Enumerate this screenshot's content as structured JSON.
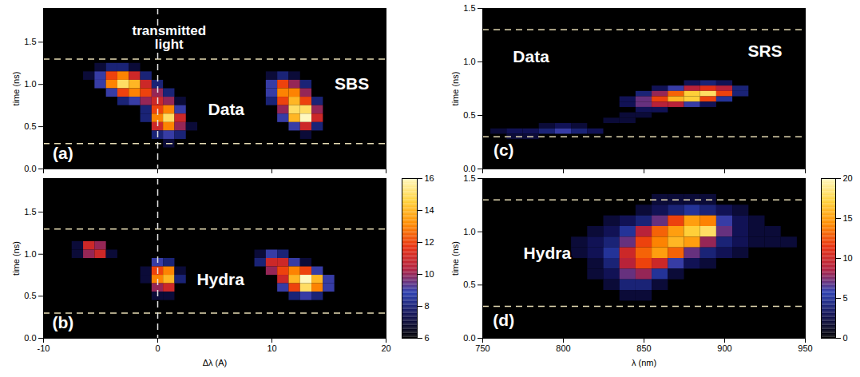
{
  "chart_data": [
    {
      "type": "heatmap",
      "y_label": "time (ns)",
      "xlim": [
        -10,
        20
      ],
      "xticks": [
        -10,
        0,
        10,
        20
      ],
      "ylim": [
        0,
        1.9
      ],
      "yticks": [
        {
          "value": 0,
          "label": "0.0"
        },
        0.5,
        {
          "value": 1,
          "label": "1.0"
        },
        1.5
      ],
      "tick_labels": "y",
      "hlines": [
        0.3,
        1.3
      ],
      "vlines": [
        0
      ],
      "color_range": [
        6,
        16
      ],
      "annotations": [
        {
          "text": "transmitted light",
          "x": 1,
          "y": 1.55
        },
        {
          "text": "Data",
          "x": 6,
          "y": 0.7
        },
        {
          "text": "SBS",
          "x": 17,
          "y": 1.0
        },
        {
          "text": "(a)",
          "x": -8.3,
          "y": 0.18
        }
      ],
      "cells": [
        [
          -5,
          1.2,
          7
        ],
        [
          -4,
          1.2,
          8
        ],
        [
          -3,
          1.2,
          8
        ],
        [
          -2,
          1.2,
          7
        ],
        [
          -6,
          1.1,
          7
        ],
        [
          -5,
          1.1,
          9
        ],
        [
          -4,
          1.1,
          12
        ],
        [
          -3,
          1.1,
          13
        ],
        [
          -2,
          1.1,
          11
        ],
        [
          -1,
          1.1,
          8
        ],
        [
          -5,
          1.0,
          9
        ],
        [
          -4,
          1.0,
          13
        ],
        [
          -3,
          1.0,
          15
        ],
        [
          -2,
          1.0,
          14
        ],
        [
          -1,
          1.0,
          11
        ],
        [
          0,
          1.0,
          8
        ],
        [
          -4,
          0.9,
          9
        ],
        [
          -3,
          0.9,
          12
        ],
        [
          -2,
          0.9,
          13
        ],
        [
          -1,
          0.9,
          12
        ],
        [
          0,
          0.9,
          10
        ],
        [
          1,
          0.9,
          8
        ],
        [
          -3,
          0.8,
          8
        ],
        [
          -2,
          0.8,
          9
        ],
        [
          -1,
          0.8,
          10
        ],
        [
          0,
          0.8,
          11
        ],
        [
          1,
          0.8,
          10
        ],
        [
          2,
          0.8,
          7
        ],
        [
          -1,
          0.7,
          8
        ],
        [
          0,
          0.7,
          12
        ],
        [
          1,
          0.7,
          13
        ],
        [
          2,
          0.7,
          9
        ],
        [
          -1,
          0.6,
          8
        ],
        [
          0,
          0.6,
          13
        ],
        [
          1,
          0.6,
          15
        ],
        [
          2,
          0.6,
          11
        ],
        [
          0,
          0.5,
          11
        ],
        [
          1,
          0.5,
          13
        ],
        [
          2,
          0.5,
          10
        ],
        [
          3,
          0.5,
          7
        ],
        [
          0,
          0.4,
          8
        ],
        [
          1,
          0.4,
          9
        ],
        [
          2,
          0.4,
          8
        ],
        [
          1,
          0.3,
          7
        ],
        [
          10,
          1.1,
          7
        ],
        [
          11,
          1.1,
          8
        ],
        [
          12,
          1.1,
          7
        ],
        [
          10,
          1.0,
          9
        ],
        [
          11,
          1.0,
          12
        ],
        [
          12,
          1.0,
          10
        ],
        [
          13,
          1.0,
          8
        ],
        [
          10,
          0.9,
          9
        ],
        [
          11,
          0.9,
          13
        ],
        [
          12,
          0.9,
          13
        ],
        [
          13,
          0.9,
          10
        ],
        [
          10,
          0.8,
          8
        ],
        [
          11,
          0.8,
          12
        ],
        [
          12,
          0.8,
          14
        ],
        [
          13,
          0.8,
          12
        ],
        [
          14,
          0.8,
          8
        ],
        [
          11,
          0.7,
          10
        ],
        [
          12,
          0.7,
          15
        ],
        [
          13,
          0.7,
          15
        ],
        [
          14,
          0.7,
          10
        ],
        [
          11,
          0.6,
          9
        ],
        [
          12,
          0.6,
          14
        ],
        [
          13,
          0.6,
          16
        ],
        [
          14,
          0.6,
          11
        ],
        [
          12,
          0.5,
          9
        ],
        [
          13,
          0.5,
          11
        ],
        [
          14,
          0.5,
          8
        ],
        [
          13,
          0.4,
          7
        ]
      ]
    },
    {
      "type": "heatmap",
      "x_label": "Δλ (A)",
      "y_label": "time (ns)",
      "xlim": [
        -10,
        20
      ],
      "xticks": [
        -10,
        0,
        10,
        20
      ],
      "ylim": [
        0,
        1.9
      ],
      "yticks": [
        {
          "value": 0,
          "label": "0.0"
        },
        0.5,
        {
          "value": 1,
          "label": "1.0"
        },
        1.5
      ],
      "hlines": [
        0.3,
        1.3
      ],
      "vlines": [
        0
      ],
      "color_range": [
        6,
        16
      ],
      "colorbar": {
        "ticks": [
          6,
          8,
          10,
          12,
          14,
          16
        ]
      },
      "annotations": [
        {
          "text": "Hydra",
          "x": 5.5,
          "y": 0.7
        },
        {
          "text": "(b)",
          "x": -8.3,
          "y": 0.18
        }
      ],
      "cells": [
        [
          -7,
          1.1,
          7
        ],
        [
          -6,
          1.1,
          11
        ],
        [
          -5,
          1.1,
          10
        ],
        [
          -7,
          1.0,
          7
        ],
        [
          -6,
          1.0,
          10
        ],
        [
          -5,
          1.0,
          11
        ],
        [
          -4,
          1.0,
          7
        ],
        [
          0,
          0.9,
          9
        ],
        [
          1,
          0.9,
          8
        ],
        [
          -1,
          0.8,
          7
        ],
        [
          0,
          0.8,
          12
        ],
        [
          1,
          0.8,
          13
        ],
        [
          2,
          0.8,
          7
        ],
        [
          -1,
          0.7,
          7
        ],
        [
          0,
          0.7,
          13
        ],
        [
          1,
          0.7,
          14
        ],
        [
          2,
          0.7,
          8
        ],
        [
          0,
          0.6,
          10
        ],
        [
          1,
          0.6,
          11
        ],
        [
          0,
          0.5,
          7
        ],
        [
          1,
          0.5,
          7
        ],
        [
          9,
          1.0,
          7
        ],
        [
          10,
          1.0,
          9
        ],
        [
          11,
          1.0,
          8
        ],
        [
          9,
          0.9,
          8
        ],
        [
          10,
          0.9,
          11
        ],
        [
          11,
          0.9,
          11
        ],
        [
          12,
          0.9,
          9
        ],
        [
          13,
          0.9,
          7
        ],
        [
          10,
          0.8,
          10
        ],
        [
          11,
          0.8,
          12
        ],
        [
          12,
          0.8,
          13
        ],
        [
          13,
          0.8,
          12
        ],
        [
          14,
          0.8,
          9
        ],
        [
          11,
          0.7,
          11
        ],
        [
          12,
          0.7,
          14
        ],
        [
          13,
          0.7,
          16
        ],
        [
          14,
          0.7,
          14
        ],
        [
          15,
          0.7,
          9
        ],
        [
          11,
          0.6,
          9
        ],
        [
          12,
          0.6,
          12
        ],
        [
          13,
          0.6,
          15
        ],
        [
          14,
          0.6,
          13
        ],
        [
          15,
          0.6,
          9
        ],
        [
          12,
          0.5,
          8
        ],
        [
          13,
          0.5,
          9
        ],
        [
          14,
          0.5,
          8
        ]
      ]
    },
    {
      "type": "heatmap",
      "y_label": "time (ns)",
      "xlim": [
        750,
        950
      ],
      "xticks": [
        750,
        800,
        850,
        900,
        950
      ],
      "ylim": [
        0,
        1.5
      ],
      "yticks": [
        {
          "value": 0,
          "label": "0.0"
        },
        0.5,
        {
          "value": 1,
          "label": "1.0"
        },
        1.5
      ],
      "tick_labels": "y",
      "hlines": [
        0.3,
        1.3
      ],
      "color_range": [
        0,
        20
      ],
      "annotations": [
        {
          "text": "Data",
          "x": 780,
          "y": 1.05
        },
        {
          "text": "SRS",
          "x": 925,
          "y": 1.1
        },
        {
          "text": "(c)",
          "x": 763,
          "y": 0.17
        }
      ],
      "cells": [
        [
          880,
          0.8,
          3
        ],
        [
          890,
          0.8,
          4
        ],
        [
          900,
          0.8,
          3
        ],
        [
          860,
          0.75,
          3
        ],
        [
          870,
          0.75,
          6
        ],
        [
          880,
          0.75,
          9
        ],
        [
          890,
          0.75,
          11
        ],
        [
          900,
          0.75,
          9
        ],
        [
          910,
          0.75,
          4
        ],
        [
          850,
          0.7,
          4
        ],
        [
          860,
          0.7,
          8
        ],
        [
          870,
          0.7,
          13
        ],
        [
          880,
          0.7,
          17
        ],
        [
          890,
          0.7,
          18
        ],
        [
          900,
          0.7,
          12
        ],
        [
          910,
          0.7,
          4
        ],
        [
          840,
          0.65,
          3
        ],
        [
          850,
          0.65,
          7
        ],
        [
          860,
          0.65,
          12
        ],
        [
          870,
          0.65,
          16
        ],
        [
          880,
          0.65,
          17
        ],
        [
          890,
          0.65,
          12
        ],
        [
          900,
          0.65,
          5
        ],
        [
          840,
          0.6,
          3
        ],
        [
          850,
          0.6,
          7
        ],
        [
          860,
          0.6,
          9
        ],
        [
          870,
          0.6,
          9
        ],
        [
          880,
          0.6,
          6
        ],
        [
          890,
          0.6,
          3
        ],
        [
          850,
          0.55,
          3
        ],
        [
          860,
          0.55,
          3
        ],
        [
          840,
          0.5,
          2
        ],
        [
          850,
          0.5,
          2
        ],
        [
          830,
          0.45,
          2
        ],
        [
          840,
          0.45,
          2
        ],
        [
          790,
          0.4,
          2
        ],
        [
          800,
          0.4,
          3
        ],
        [
          810,
          0.4,
          2
        ],
        [
          760,
          0.35,
          2
        ],
        [
          770,
          0.35,
          3
        ],
        [
          780,
          0.35,
          3
        ],
        [
          790,
          0.35,
          4
        ],
        [
          800,
          0.35,
          6
        ],
        [
          810,
          0.35,
          4
        ],
        [
          820,
          0.35,
          3
        ],
        [
          770,
          0.3,
          2
        ],
        [
          780,
          0.3,
          2
        ]
      ]
    },
    {
      "type": "heatmap",
      "x_label": "λ (nm)",
      "y_label": "time (ns)",
      "xlim": [
        750,
        950
      ],
      "xticks": [
        750,
        800,
        850,
        900,
        950
      ],
      "ylim": [
        0,
        1.5
      ],
      "yticks": [
        {
          "value": 0,
          "label": "0.0"
        },
        0.5,
        {
          "value": 1,
          "label": "1.0"
        },
        1.5
      ],
      "hlines": [
        0.3,
        1.3
      ],
      "color_range": [
        0,
        20
      ],
      "colorbar": {
        "ticks": [
          0,
          5,
          10,
          15,
          20
        ]
      },
      "annotations": [
        {
          "text": "Hydra",
          "x": 790,
          "y": 0.8
        },
        {
          "text": "(d)",
          "x": 763,
          "y": 0.17
        }
      ],
      "cells": [
        [
          860,
          1.3,
          2
        ],
        [
          870,
          1.3,
          2
        ],
        [
          880,
          1.3,
          2
        ],
        [
          890,
          1.3,
          2
        ],
        [
          850,
          1.2,
          2
        ],
        [
          860,
          1.2,
          3
        ],
        [
          870,
          1.2,
          4
        ],
        [
          880,
          1.2,
          5
        ],
        [
          890,
          1.2,
          4
        ],
        [
          900,
          1.2,
          3
        ],
        [
          910,
          1.2,
          2
        ],
        [
          830,
          1.1,
          2
        ],
        [
          840,
          1.1,
          3
        ],
        [
          850,
          1.1,
          4
        ],
        [
          860,
          1.1,
          7
        ],
        [
          870,
          1.1,
          12
        ],
        [
          880,
          1.1,
          15
        ],
        [
          890,
          1.1,
          14
        ],
        [
          900,
          1.1,
          6
        ],
        [
          910,
          1.1,
          3
        ],
        [
          920,
          1.1,
          2
        ],
        [
          820,
          1.0,
          2
        ],
        [
          830,
          1.0,
          3
        ],
        [
          840,
          1.0,
          5
        ],
        [
          850,
          1.0,
          9
        ],
        [
          860,
          1.0,
          13
        ],
        [
          870,
          1.0,
          15
        ],
        [
          880,
          1.0,
          17
        ],
        [
          890,
          1.0,
          18
        ],
        [
          900,
          1.0,
          7
        ],
        [
          910,
          1.0,
          3
        ],
        [
          920,
          1.0,
          2
        ],
        [
          930,
          1.0,
          2
        ],
        [
          810,
          0.9,
          2
        ],
        [
          820,
          0.9,
          3
        ],
        [
          830,
          0.9,
          4
        ],
        [
          840,
          0.9,
          7
        ],
        [
          850,
          0.9,
          12
        ],
        [
          860,
          0.9,
          14
        ],
        [
          870,
          0.9,
          16
        ],
        [
          880,
          0.9,
          15
        ],
        [
          890,
          0.9,
          8
        ],
        [
          900,
          0.9,
          4
        ],
        [
          910,
          0.9,
          3
        ],
        [
          920,
          0.9,
          2
        ],
        [
          930,
          0.9,
          2
        ],
        [
          940,
          0.9,
          2
        ],
        [
          810,
          0.8,
          2
        ],
        [
          820,
          0.8,
          3
        ],
        [
          830,
          0.8,
          5
        ],
        [
          840,
          0.8,
          10
        ],
        [
          850,
          0.8,
          13
        ],
        [
          860,
          0.8,
          15
        ],
        [
          870,
          0.8,
          13
        ],
        [
          880,
          0.8,
          7
        ],
        [
          890,
          0.8,
          4
        ],
        [
          900,
          0.8,
          3
        ],
        [
          910,
          0.8,
          2
        ],
        [
          820,
          0.7,
          2
        ],
        [
          830,
          0.7,
          4
        ],
        [
          840,
          0.7,
          9
        ],
        [
          850,
          0.7,
          12
        ],
        [
          860,
          0.7,
          10
        ],
        [
          870,
          0.7,
          6
        ],
        [
          880,
          0.7,
          3
        ],
        [
          890,
          0.7,
          2
        ],
        [
          820,
          0.6,
          2
        ],
        [
          830,
          0.6,
          3
        ],
        [
          840,
          0.6,
          7
        ],
        [
          850,
          0.6,
          8
        ],
        [
          860,
          0.6,
          5
        ],
        [
          870,
          0.6,
          2
        ],
        [
          830,
          0.5,
          2
        ],
        [
          840,
          0.5,
          4
        ],
        [
          850,
          0.5,
          4
        ],
        [
          860,
          0.5,
          2
        ],
        [
          840,
          0.4,
          2
        ],
        [
          850,
          0.4,
          2
        ]
      ]
    }
  ]
}
